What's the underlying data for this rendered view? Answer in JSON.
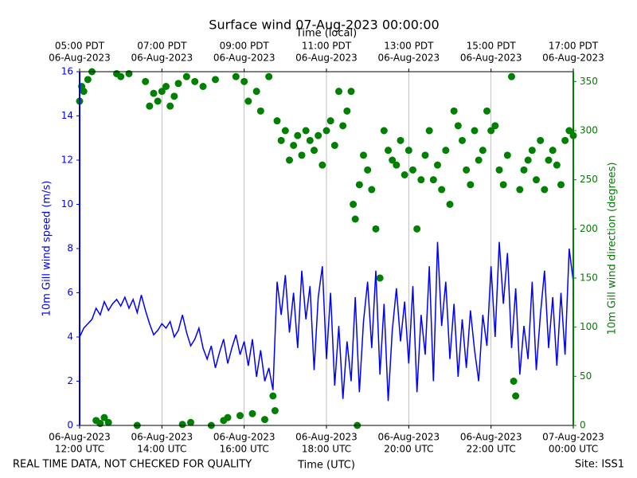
{
  "chart_data": {
    "type": "line",
    "title": "Surface wind 07-Aug-2023 00:00:00",
    "xlabel": "Time (UTC)",
    "top_xlabel": "Time (local)",
    "ylabel": "10m Gill wind speed (m/s)",
    "y2label": "10m Gill wind direction (degrees)",
    "footer_left": "REAL TIME DATA, NOT CHECKED FOR QUALITY",
    "footer_right": "Site: ISS1",
    "grid": true,
    "xlim": [
      12,
      24
    ],
    "xticks": [
      {
        "value": 12,
        "label": [
          "06-Aug-2023",
          "12:00 UTC"
        ]
      },
      {
        "value": 14,
        "label": [
          "06-Aug-2023",
          "14:00 UTC"
        ]
      },
      {
        "value": 16,
        "label": [
          "06-Aug-2023",
          "16:00 UTC"
        ]
      },
      {
        "value": 18,
        "label": [
          "06-Aug-2023",
          "18:00 UTC"
        ]
      },
      {
        "value": 20,
        "label": [
          "06-Aug-2023",
          "20:00 UTC"
        ]
      },
      {
        "value": 22,
        "label": [
          "06-Aug-2023",
          "22:00 UTC"
        ]
      },
      {
        "value": 24,
        "label": [
          "07-Aug-2023",
          "00:00 UTC"
        ]
      }
    ],
    "top_xticks": [
      {
        "value": 12,
        "label": [
          "05:00 PDT",
          "06-Aug-2023"
        ]
      },
      {
        "value": 14,
        "label": [
          "07:00 PDT",
          "06-Aug-2023"
        ]
      },
      {
        "value": 16,
        "label": [
          "09:00 PDT",
          "06-Aug-2023"
        ]
      },
      {
        "value": 18,
        "label": [
          "11:00 PDT",
          "06-Aug-2023"
        ]
      },
      {
        "value": 20,
        "label": [
          "13:00 PDT",
          "06-Aug-2023"
        ]
      },
      {
        "value": 22,
        "label": [
          "15:00 PDT",
          "06-Aug-2023"
        ]
      },
      {
        "value": 24,
        "label": [
          "17:00 PDT",
          "06-Aug-2023"
        ]
      }
    ],
    "ylim": [
      0,
      16
    ],
    "yticks": [
      0,
      2,
      4,
      6,
      8,
      10,
      12,
      14,
      16
    ],
    "y2lim": [
      0,
      360
    ],
    "y2ticks": [
      0,
      50,
      100,
      150,
      200,
      250,
      300,
      350
    ],
    "series": [
      {
        "name": "10m Gill wind speed",
        "type": "line",
        "color": "#0000ff",
        "x": [
          12.0,
          12.1,
          12.2,
          12.3,
          12.4,
          12.5,
          12.6,
          12.7,
          12.8,
          12.9,
          13.0,
          13.1,
          13.2,
          13.3,
          13.4,
          13.5,
          13.6,
          13.7,
          13.8,
          13.9,
          14.0,
          14.1,
          14.2,
          14.3,
          14.4,
          14.5,
          14.6,
          14.7,
          14.8,
          14.9,
          15.0,
          15.1,
          15.2,
          15.3,
          15.4,
          15.5,
          15.6,
          15.7,
          15.8,
          15.9,
          16.0,
          16.1,
          16.2,
          16.3,
          16.4,
          16.5,
          16.6,
          16.7,
          16.8,
          16.9,
          17.0,
          17.1,
          17.2,
          17.3,
          17.4,
          17.5,
          17.6,
          17.7,
          17.8,
          17.9,
          18.0,
          18.1,
          18.2,
          18.3,
          18.4,
          18.5,
          18.6,
          18.7,
          18.8,
          18.9,
          19.0,
          19.1,
          19.2,
          19.3,
          19.4,
          19.5,
          19.6,
          19.7,
          19.8,
          19.9,
          20.0,
          20.1,
          20.2,
          20.3,
          20.4,
          20.5,
          20.6,
          20.7,
          20.8,
          20.9,
          21.0,
          21.1,
          21.2,
          21.3,
          21.4,
          21.5,
          21.6,
          21.7,
          21.8,
          21.9,
          22.0,
          22.1,
          22.2,
          22.3,
          22.4,
          22.5,
          22.6,
          22.7,
          22.8,
          22.9,
          23.0,
          23.1,
          23.2,
          23.3,
          23.4,
          23.5,
          23.6,
          23.7,
          23.8,
          23.9,
          24.0
        ],
        "values": [
          4.0,
          4.4,
          4.6,
          4.8,
          5.3,
          5.0,
          5.6,
          5.2,
          5.5,
          5.7,
          5.4,
          5.8,
          5.3,
          5.7,
          5.1,
          5.9,
          5.2,
          4.6,
          4.1,
          4.3,
          4.6,
          4.4,
          4.7,
          4.0,
          4.3,
          5.0,
          4.2,
          3.6,
          3.9,
          4.4,
          3.5,
          3.0,
          3.6,
          2.6,
          3.3,
          3.9,
          2.8,
          3.5,
          4.1,
          3.2,
          3.8,
          2.7,
          3.9,
          2.2,
          3.4,
          2.0,
          2.6,
          1.6,
          6.5,
          5.0,
          6.8,
          4.2,
          6.0,
          3.5,
          7.0,
          4.8,
          6.3,
          2.5,
          5.8,
          7.2,
          3.0,
          6.0,
          1.8,
          4.5,
          1.2,
          3.8,
          2.0,
          5.8,
          1.5,
          4.7,
          6.5,
          3.5,
          7.0,
          2.3,
          5.5,
          1.1,
          4.3,
          6.2,
          3.8,
          5.6,
          2.8,
          6.3,
          1.5,
          5.0,
          3.2,
          7.2,
          2.0,
          8.3,
          4.5,
          6.5,
          3.0,
          5.5,
          2.2,
          4.8,
          2.6,
          5.2,
          3.4,
          2.0,
          5.0,
          3.6,
          7.2,
          4.0,
          8.3,
          5.5,
          7.8,
          3.5,
          6.2,
          2.3,
          4.5,
          3.0,
          6.5,
          2.5,
          5.0,
          7.0,
          3.5,
          5.8,
          2.7,
          6.0,
          3.2,
          8.0,
          6.5
        ]
      },
      {
        "name": "10m Gill wind direction",
        "type": "scatter",
        "axis": "y2",
        "color": "#008000",
        "x": [
          12.0,
          12.05,
          12.1,
          12.2,
          12.3,
          12.4,
          12.5,
          12.6,
          12.7,
          12.9,
          13.0,
          13.2,
          13.4,
          13.6,
          13.7,
          13.8,
          13.9,
          14.0,
          14.1,
          14.2,
          14.3,
          14.4,
          14.5,
          14.6,
          14.7,
          14.8,
          15.0,
          15.2,
          15.3,
          15.5,
          15.6,
          15.8,
          15.9,
          16.0,
          16.1,
          16.2,
          16.3,
          16.4,
          16.5,
          16.6,
          16.7,
          16.75,
          16.8,
          16.9,
          17.0,
          17.1,
          17.2,
          17.3,
          17.4,
          17.5,
          17.6,
          17.7,
          17.8,
          17.9,
          18.0,
          18.1,
          18.2,
          18.3,
          18.4,
          18.5,
          18.6,
          18.65,
          18.7,
          18.75,
          18.8,
          18.9,
          19.0,
          19.1,
          19.2,
          19.3,
          19.4,
          19.5,
          19.6,
          19.7,
          19.8,
          19.9,
          20.0,
          20.1,
          20.2,
          20.3,
          20.4,
          20.5,
          20.6,
          20.7,
          20.8,
          20.9,
          21.0,
          21.1,
          21.2,
          21.3,
          21.4,
          21.5,
          21.6,
          21.7,
          21.8,
          21.9,
          22.0,
          22.1,
          22.2,
          22.3,
          22.4,
          22.5,
          22.55,
          22.6,
          22.7,
          22.8,
          22.9,
          23.0,
          23.1,
          23.2,
          23.3,
          23.4,
          23.5,
          23.6,
          23.7,
          23.8,
          23.9,
          24.0
        ],
        "values": [
          330,
          345,
          340,
          352,
          360,
          5,
          2,
          8,
          3,
          358,
          355,
          358,
          0,
          350,
          325,
          338,
          330,
          340,
          345,
          325,
          335,
          348,
          1,
          355,
          3,
          350,
          345,
          0,
          352,
          5,
          8,
          355,
          10,
          350,
          330,
          12,
          340,
          320,
          6,
          355,
          30,
          15,
          310,
          290,
          300,
          270,
          285,
          295,
          275,
          300,
          290,
          280,
          295,
          265,
          300,
          310,
          285,
          340,
          305,
          320,
          340,
          225,
          210,
          0,
          245,
          275,
          260,
          240,
          200,
          150,
          300,
          280,
          270,
          265,
          290,
          255,
          280,
          260,
          200,
          250,
          275,
          300,
          250,
          265,
          240,
          280,
          225,
          320,
          305,
          290,
          260,
          245,
          300,
          270,
          280,
          320,
          300,
          305,
          260,
          245,
          275,
          355,
          45,
          30,
          240,
          260,
          270,
          280,
          250,
          290,
          240,
          270,
          280,
          265,
          245,
          290,
          300,
          295
        ]
      }
    ]
  }
}
